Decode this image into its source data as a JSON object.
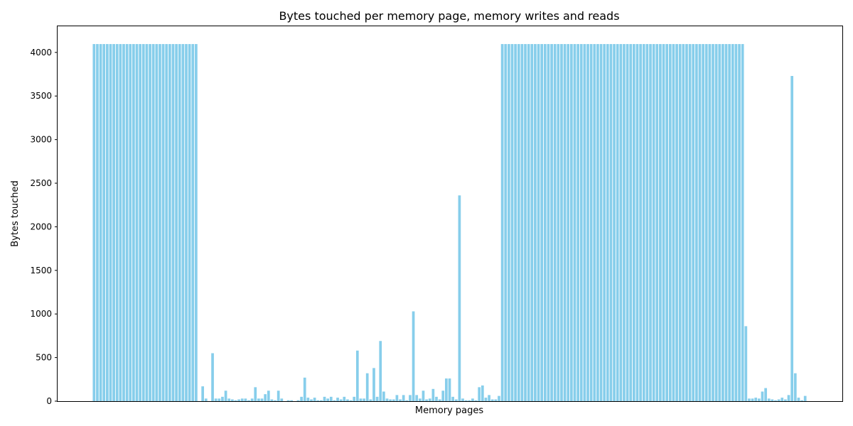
{
  "chart_data": {
    "type": "bar",
    "title": "Bytes touched per memory page, memory writes and reads",
    "xlabel": "Memory pages",
    "ylabel": "Bytes touched",
    "ylim": [
      0,
      4300
    ],
    "yticks": [
      0,
      500,
      1000,
      1500,
      2000,
      2500,
      3000,
      3500,
      4000
    ],
    "grid": false,
    "bar_color": "#87ceeb",
    "values": [
      4096,
      4096,
      4096,
      4096,
      4096,
      4096,
      4096,
      4096,
      4096,
      4096,
      4096,
      4096,
      4096,
      4096,
      4096,
      4096,
      4096,
      4096,
      4096,
      4096,
      4096,
      4096,
      4096,
      4096,
      4096,
      4096,
      4096,
      4096,
      4096,
      4096,
      4096,
      4096,
      0,
      170,
      30,
      0,
      550,
      30,
      30,
      50,
      120,
      30,
      20,
      10,
      20,
      30,
      30,
      10,
      30,
      160,
      30,
      30,
      80,
      120,
      20,
      10,
      120,
      30,
      0,
      10,
      10,
      0,
      10,
      50,
      270,
      40,
      20,
      40,
      10,
      10,
      50,
      30,
      50,
      10,
      40,
      20,
      50,
      20,
      10,
      50,
      580,
      30,
      30,
      320,
      20,
      380,
      50,
      690,
      110,
      30,
      20,
      20,
      70,
      20,
      70,
      10,
      70,
      1030,
      70,
      30,
      120,
      20,
      30,
      140,
      50,
      20,
      120,
      260,
      260,
      50,
      20,
      2360,
      30,
      10,
      10,
      30,
      10,
      160,
      180,
      40,
      70,
      20,
      20,
      60,
      4096,
      4096,
      4096,
      4096,
      4096,
      4096,
      4096,
      4096,
      4096,
      4096,
      4096,
      4096,
      4096,
      4096,
      4096,
      4096,
      4096,
      4096,
      4096,
      4096,
      4096,
      4096,
      4096,
      4096,
      4096,
      4096,
      4096,
      4096,
      4096,
      4096,
      4096,
      4096,
      4096,
      4096,
      4096,
      4096,
      4096,
      4096,
      4096,
      4096,
      4096,
      4096,
      4096,
      4096,
      4096,
      4096,
      4096,
      4096,
      4096,
      4096,
      4096,
      4096,
      4096,
      4096,
      4096,
      4096,
      4096,
      4096,
      4096,
      4096,
      4096,
      4096,
      4096,
      4096,
      4096,
      4096,
      4096,
      4096,
      4096,
      4096,
      4096,
      4096,
      4096,
      4096,
      860,
      30,
      30,
      40,
      30,
      110,
      150,
      30,
      20,
      10,
      20,
      40,
      20,
      70,
      3730,
      320,
      40,
      10,
      60
    ]
  }
}
